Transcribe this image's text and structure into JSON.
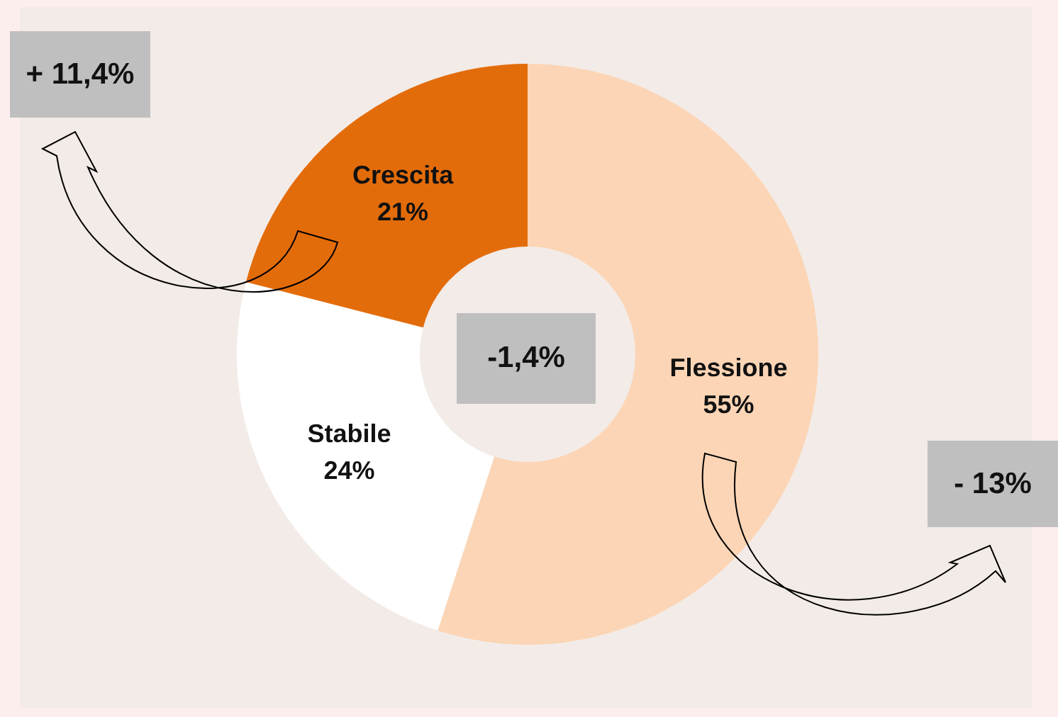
{
  "chart_data": {
    "type": "donut",
    "categories": [
      "Flessione",
      "Stabile",
      "Crescita"
    ],
    "values": [
      55,
      24,
      21
    ],
    "value_labels": [
      "55%",
      "24%",
      "21%"
    ],
    "colors": [
      "#fbd5b5",
      "#ffffff",
      "#e36c0a"
    ],
    "annotations": [
      "+ 11,4%",
      "-1,4%",
      "- 13%"
    ]
  }
}
